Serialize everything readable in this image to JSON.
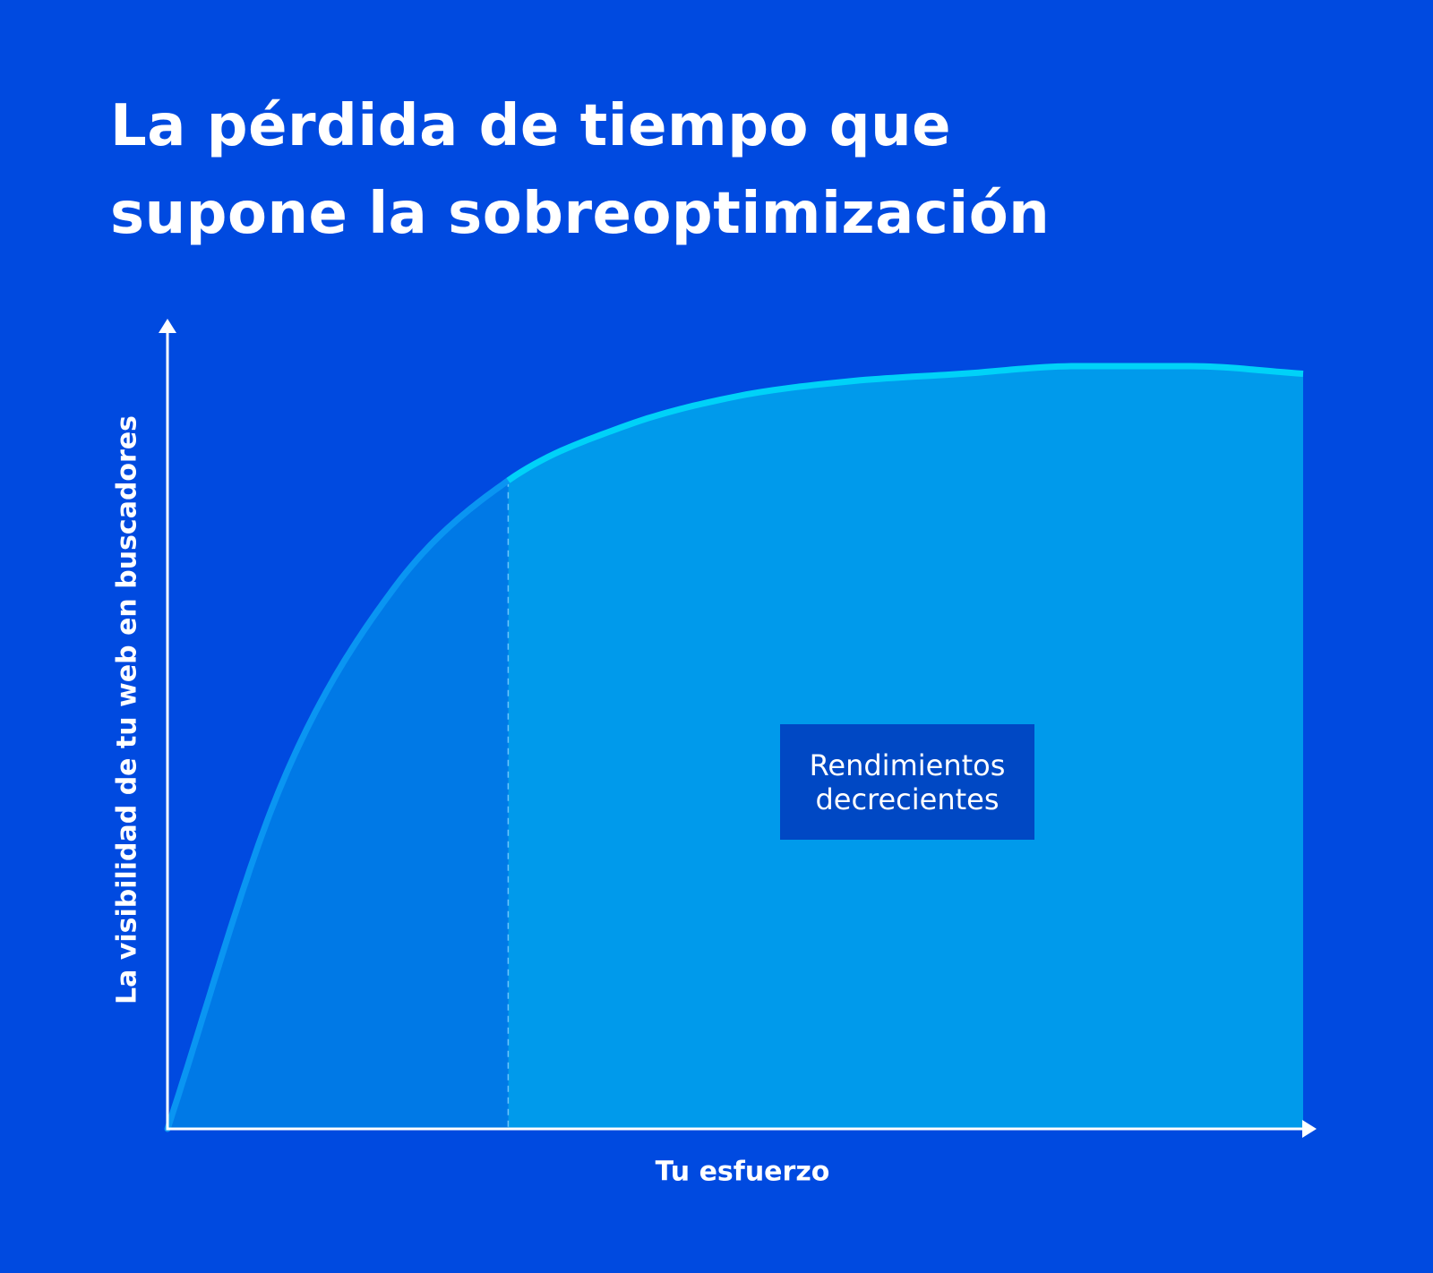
{
  "chart_data": {
    "type": "area",
    "title_lines": [
      "La pérdida de tiempo que",
      "supone la sobreoptimización"
    ],
    "xlabel": "Tu esfuerzo",
    "ylabel": "La visibilidad de tu web en buscadores",
    "annotation_lines": [
      "Rendimientos",
      "decrecientes"
    ],
    "x": [
      0,
      0.1,
      0.2,
      0.3,
      0.4,
      0.5,
      0.6,
      0.7,
      0.8,
      0.9,
      1.0
    ],
    "values": [
      0,
      0.45,
      0.71,
      0.85,
      0.92,
      0.96,
      0.98,
      0.99,
      1.0,
      1.0,
      0.99
    ],
    "xlim": [
      0,
      1
    ],
    "ylim": [
      0,
      1
    ],
    "threshold_x": 0.3,
    "grid": false,
    "colors": {
      "background": "#004ae0",
      "fill_before": "#0079e6",
      "fill_after": "#009aeb",
      "line_before": "#0a95f2",
      "line_after": "#00d2f8",
      "axis": "#ffffff",
      "annotation_box": "#0048c4"
    }
  }
}
